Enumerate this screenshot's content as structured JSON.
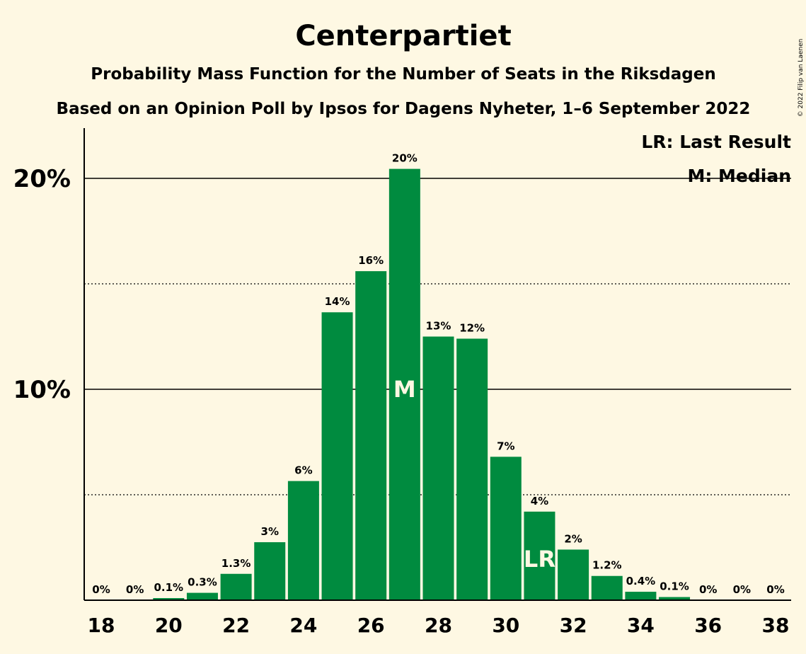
{
  "chart_data": {
    "type": "bar",
    "title": "Centerpartiet",
    "subtitle": "Probability Mass Function for the Number of Seats in the Riksdagen",
    "subtitle2": "Based on an Opinion Poll by Ipsos for Dagens Nyheter, 1–6 September 2022",
    "copyright": "© 2022 Filip van Laenen",
    "legend": [
      "LR: Last Result",
      "M: Median"
    ],
    "legend_position": "top-right",
    "color": "#008B3F",
    "x": [
      18,
      19,
      20,
      21,
      22,
      23,
      24,
      25,
      26,
      27,
      28,
      29,
      30,
      31,
      32,
      33,
      34,
      35,
      36,
      37,
      38
    ],
    "values": [
      0,
      0,
      0.1,
      0.35,
      1.25,
      2.75,
      5.65,
      13.65,
      15.6,
      20.45,
      12.5,
      12.4,
      6.8,
      4.2,
      2.4,
      1.15,
      0.4,
      0.15,
      0,
      0,
      0
    ],
    "labels": [
      "0%",
      "0%",
      "0.1%",
      "0.3%",
      "1.3%",
      "3%",
      "6%",
      "14%",
      "16%",
      "20%",
      "13%",
      "12%",
      "7%",
      "4%",
      "2%",
      "1.2%",
      "0.4%",
      "0.1%",
      "0%",
      "0%",
      "0%"
    ],
    "x_tick_labels": [
      "18",
      "20",
      "22",
      "24",
      "26",
      "28",
      "30",
      "32",
      "34",
      "36",
      "38"
    ],
    "y_tick_labels": [
      "10%",
      "20%"
    ],
    "y_ticks": [
      10,
      20
    ],
    "y_minor_ticks": [
      5,
      15
    ],
    "ylim": [
      0,
      22.4
    ],
    "median": 27,
    "median_label": "M",
    "last_result": 31,
    "last_result_label": "LR",
    "grid": true
  }
}
